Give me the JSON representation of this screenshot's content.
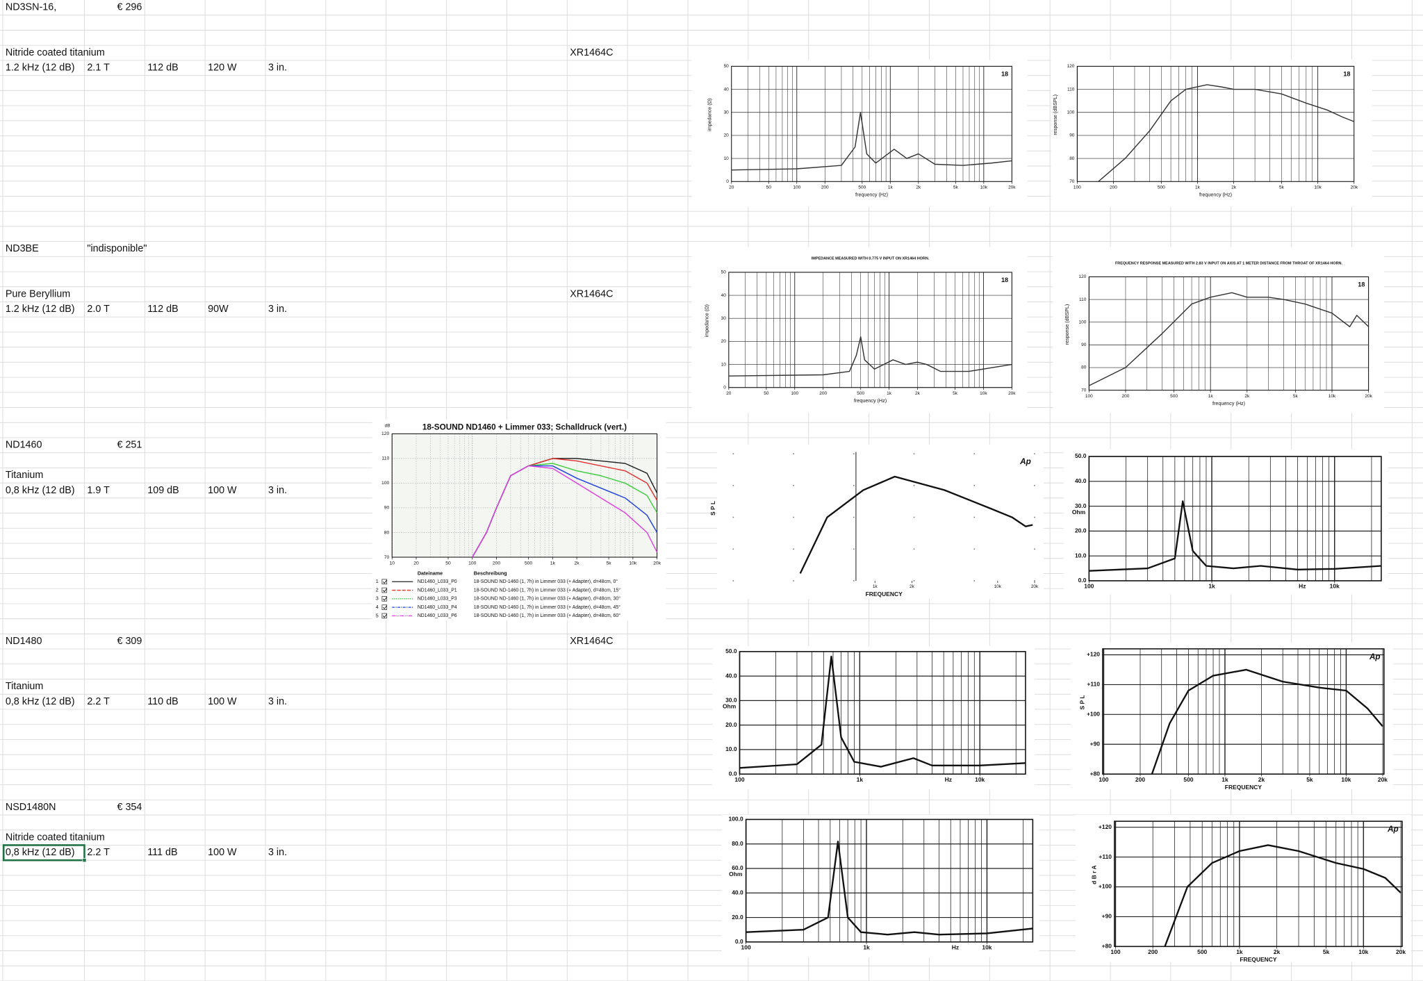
{
  "sheet": [
    {
      "model": "ND3SN-16,",
      "price": "€ 296",
      "material": "Nitride coated titanium",
      "horn": "XR1464C",
      "specs": [
        "1.2 kHz (12 dB)",
        "2.1 T",
        "112 dB",
        "120 W",
        "3 in."
      ]
    },
    {
      "model": "ND3BE",
      "price": "\"indisponible\"",
      "material": "Pure Beryllium",
      "horn": "XR1464C",
      "specs": [
        "1.2 kHz (12 dB)",
        "2.0 T",
        "112 dB",
        "90W",
        "3 in."
      ]
    },
    {
      "model": "ND1460",
      "price": "€ 251",
      "material": "Titanium",
      "specs": [
        "0,8 kHz (12 dB)",
        "1.9 T",
        "109 dB",
        "100 W",
        "3 in."
      ]
    },
    {
      "model": "ND1480",
      "price": "€ 309",
      "material": "Titanium",
      "horn": "XR1464C",
      "specs": [
        "0,8 kHz (12 dB)",
        "2.2 T",
        "110 dB",
        "100 W",
        "3 in."
      ]
    },
    {
      "model": "NSD1480N",
      "price": "€ 354",
      "material": "Nitride coated titanium",
      "specs": [
        "0,8 kHz (12 dB)",
        "2.2 T",
        "111 dB",
        "100 W",
        "3 in."
      ]
    }
  ],
  "images": [
    {
      "logo": "18",
      "ylabel": "impedance (Ω)",
      "xlabel": "frequency (Hz)",
      "xlim": [
        20,
        20000
      ],
      "ylim": [
        0,
        50
      ],
      "xticks": [
        20,
        50,
        100,
        200,
        500,
        {
          "value": 1000,
          "label": "1k"
        },
        {
          "value": 2000,
          "label": "2k"
        },
        {
          "value": 5000,
          "label": "5k"
        },
        {
          "value": 10000,
          "label": "10k"
        },
        {
          "value": 20000,
          "label": "20k"
        }
      ],
      "yticks": [
        0,
        10,
        20,
        30,
        40,
        50
      ],
      "series": [
        {
          "color": "#333333",
          "x": [
            20,
            100,
            300,
            420,
            480,
            560,
            700,
            1100,
            1500,
            2000,
            3000,
            6000,
            12000,
            20000
          ],
          "values": [
            5,
            5.5,
            7,
            15,
            30,
            12,
            8,
            14,
            10,
            12,
            7.5,
            7,
            8,
            9
          ]
        }
      ]
    },
    {
      "logo": "18",
      "ylabel": "response (dBSPL)",
      "xlabel": "frequency (Hz)",
      "xlim": [
        100,
        20000
      ],
      "ylim": [
        70,
        120
      ],
      "xticks": [
        100,
        200,
        500,
        {
          "value": 1000,
          "label": "1k"
        },
        {
          "value": 2000,
          "label": "2k"
        },
        {
          "value": 5000,
          "label": "5k"
        },
        {
          "value": 10000,
          "label": "10k"
        },
        {
          "value": 20000,
          "label": "20k"
        }
      ],
      "yticks": [
        70,
        80,
        90,
        100,
        110,
        120
      ],
      "series": [
        {
          "color": "#333333",
          "x": [
            150,
            250,
            400,
            600,
            800,
            1200,
            1600,
            2000,
            3000,
            5000,
            8000,
            12000,
            16000,
            20000
          ],
          "values": [
            70,
            80,
            92,
            105,
            110,
            112,
            111,
            110,
            110,
            108,
            104,
            101,
            98,
            96
          ]
        }
      ]
    },
    {
      "title": "IMPEDANCE MEASURED WITH 0.775 V INPUT ON XR1464 HORN.",
      "logo": "18",
      "ylabel": "impedance (Ω)",
      "xlabel": "frequency (Hz)",
      "xlim": [
        20,
        20000
      ],
      "ylim": [
        0,
        50
      ],
      "xticks": [
        20,
        50,
        100,
        200,
        500,
        {
          "value": 1000,
          "label": "1k"
        },
        {
          "value": 2000,
          "label": "2k"
        },
        {
          "value": 5000,
          "label": "5k"
        },
        {
          "value": 10000,
          "label": "10k"
        },
        {
          "value": 20000,
          "label": "20k"
        }
      ],
      "yticks": [
        0,
        10,
        20,
        30,
        40,
        50
      ],
      "series": [
        {
          "color": "#333333",
          "x": [
            20,
            200,
            380,
            450,
            500,
            550,
            700,
            1100,
            1500,
            2000,
            2500,
            3500,
            7000,
            20000
          ],
          "values": [
            5,
            5.5,
            7,
            14,
            22,
            12,
            8,
            12,
            10,
            11,
            10,
            7,
            7,
            10
          ]
        }
      ]
    },
    {
      "title": "FREQUENCY RESPONSE MEASURED WITH 2.83 V INPUT ON AXIS AT 1 METER DISTANCE FROM THROAT OF XR1464 HORN.",
      "logo": "18",
      "ylabel": "response (dBSPL)",
      "xlabel": "frequency (Hz)",
      "xlim": [
        100,
        20000
      ],
      "ylim": [
        70,
        120
      ],
      "xticks": [
        100,
        200,
        500,
        {
          "value": 1000,
          "label": "1k"
        },
        {
          "value": 2000,
          "label": "2k"
        },
        {
          "value": 5000,
          "label": "5k"
        },
        {
          "value": 10000,
          "label": "10k"
        },
        {
          "value": 20000,
          "label": "20k"
        }
      ],
      "yticks": [
        70,
        80,
        90,
        100,
        110,
        120
      ],
      "series": [
        {
          "color": "#333333",
          "x": [
            100,
            200,
            400,
            700,
            1000,
            1500,
            2000,
            3000,
            4000,
            6000,
            10000,
            14000,
            16000,
            20000
          ],
          "values": [
            72,
            80,
            95,
            108,
            111,
            113,
            111,
            111,
            110,
            108,
            104,
            98,
            103,
            98
          ]
        }
      ]
    },
    {
      "title": "18-SOUND ND1460 + Limmer 033; Schalldruck (vert.)",
      "ylabel": "dB",
      "xlim": [
        10,
        20000
      ],
      "ylim": [
        70,
        120
      ],
      "xticks": [
        10,
        20,
        50,
        100,
        200,
        500,
        {
          "value": 1000,
          "label": "1k"
        },
        {
          "value": 2000,
          "label": "2k"
        },
        {
          "value": 5000,
          "label": "5k"
        },
        {
          "value": 10000,
          "label": "10k"
        },
        {
          "value": 20000,
          "label": "20k"
        }
      ],
      "yticks": [
        70,
        80,
        90,
        100,
        110,
        120
      ],
      "series": [
        {
          "color": "#222222",
          "x": [
            100,
            150,
            200,
            300,
            500,
            1000,
            2000,
            4000,
            8000,
            15000,
            20000
          ],
          "values": [
            70,
            80,
            90,
            103,
            107,
            110,
            110,
            109,
            108,
            104,
            96
          ]
        },
        {
          "color": "#e03030",
          "x": [
            100,
            150,
            200,
            300,
            500,
            1000,
            2000,
            4000,
            8000,
            15000,
            20000
          ],
          "values": [
            70,
            80,
            90,
            103,
            107,
            110,
            109,
            107,
            105,
            100,
            93
          ]
        },
        {
          "color": "#40cc40",
          "x": [
            100,
            150,
            200,
            300,
            500,
            1000,
            2000,
            4000,
            8000,
            15000,
            20000
          ],
          "values": [
            70,
            80,
            90,
            103,
            107,
            108,
            105,
            103,
            100,
            95,
            88
          ]
        },
        {
          "color": "#2040e0",
          "x": [
            100,
            150,
            200,
            300,
            500,
            1000,
            2000,
            4000,
            8000,
            15000,
            20000
          ],
          "values": [
            70,
            80,
            90,
            103,
            107,
            107,
            102,
            98,
            94,
            87,
            80
          ]
        },
        {
          "color": "#e040e0",
          "x": [
            100,
            150,
            200,
            300,
            500,
            1000,
            2000,
            4000,
            8000,
            15000,
            20000
          ],
          "values": [
            70,
            80,
            90,
            103,
            107,
            106,
            100,
            94,
            88,
            80,
            72
          ]
        }
      ],
      "legend": {
        "header": [
          "Dateiname",
          "Beschreibung"
        ],
        "rows": [
          [
            "1",
            "ND1460_L033_P0",
            "18-SOUND ND-1460 (1, 7h) in Limmer 033 (+ Adapter), d=48cm, 0°"
          ],
          [
            "2",
            "ND1460_L033_P1",
            "18-SOUND ND-1460 (1, 7h) in Limmer 033 (+ Adapter), d=48cm, 15°"
          ],
          [
            "3",
            "ND1460_L033_P3",
            "18-SOUND ND-1460 (1, 7h) in Limmer 033 (+ Adapter), d=48cm, 30°"
          ],
          [
            "4",
            "ND1460_L033_P4",
            "18-SOUND ND-1460 (1, 7h) in Limmer 033 (+ Adapter), d=48cm, 45°"
          ],
          [
            "5",
            "ND1460_L033_P6",
            "18-SOUND ND-1460 (1, 7h) in Limmer 033 (+ Adapter), d=48cm, 60°"
          ]
        ]
      }
    },
    {
      "logo": "Ap",
      "ylabel": "S P L",
      "xlabel": "FREQUENCY",
      "xlim": [
        70,
        20000
      ],
      "ylim": [
        70,
        120
      ],
      "xticks": [
        {
          "value": 1000,
          "label": "1k"
        },
        {
          "value": 2000,
          "label": "2k"
        },
        {
          "value": 10000,
          "label": "10k"
        },
        {
          "value": 20000,
          "label": "20k"
        }
      ],
      "yticks": [],
      "series": [
        {
          "color": "#111111",
          "x": [
            246,
            408,
            803,
            1450,
            3680,
            8600,
            13100,
            16900,
            19300
          ],
          "values": [
            72.9,
            95,
            105.7,
            111,
            105.7,
            98.6,
            95,
            91.4,
            92
          ]
        }
      ]
    },
    {
      "ylabel": "Ohm",
      "xunit": "Hz",
      "xlim": [
        100,
        24000
      ],
      "ylim": [
        0,
        50
      ],
      "xticks": [
        100,
        {
          "value": 1000,
          "label": "1k"
        },
        {
          "value": 10000,
          "label": "10k"
        }
      ],
      "yticks": [
        {
          "value": 0,
          "label": "0.0"
        },
        {
          "value": 10,
          "label": "10.0"
        },
        {
          "value": 20,
          "label": "20.0"
        },
        {
          "value": 30,
          "label": "30.0"
        },
        {
          "value": 40,
          "label": "40.0"
        },
        {
          "value": 50,
          "label": "50.0"
        }
      ],
      "series": [
        {
          "color": "#111111",
          "x": [
            100,
            300,
            500,
            580,
            700,
            900,
            1500,
            2500,
            5000,
            10000,
            24000
          ],
          "values": [
            4,
            5,
            9,
            32,
            12,
            6,
            5,
            6,
            4.5,
            4.8,
            6
          ]
        }
      ]
    },
    {
      "ylabel": "Ohm",
      "xunit": "Hz",
      "xlim": [
        100,
        24000
      ],
      "ylim": [
        0,
        50
      ],
      "xticks": [
        100,
        {
          "value": 1000,
          "label": "1k"
        },
        {
          "value": 10000,
          "label": "10k"
        }
      ],
      "yticks": [
        {
          "value": 0,
          "label": "0.0"
        },
        {
          "value": 10,
          "label": "10.0"
        },
        {
          "value": 20,
          "label": "20.0"
        },
        {
          "value": 30,
          "label": "30.0"
        },
        {
          "value": 40,
          "label": "40.0"
        },
        {
          "value": 50,
          "label": "50.0"
        }
      ],
      "series": [
        {
          "color": "#111111",
          "x": [
            100,
            300,
            480,
            580,
            700,
            900,
            1500,
            2800,
            4000,
            10000,
            24000
          ],
          "values": [
            2.5,
            4,
            12,
            48,
            15,
            5,
            3,
            6.5,
            3.5,
            3.5,
            4.5
          ]
        }
      ]
    },
    {
      "logo": "Ap",
      "ylabel": "S P L",
      "xlabel": "FREQUENCY",
      "xlim": [
        98,
        20500
      ],
      "ylim": [
        80,
        122
      ],
      "xticks": [
        100,
        200,
        500,
        {
          "value": 1000,
          "label": "1k"
        },
        {
          "value": 2000,
          "label": "2k"
        },
        {
          "value": 5000,
          "label": "5k"
        },
        {
          "value": 10000,
          "label": "10k"
        },
        {
          "value": 20000,
          "label": "20k"
        }
      ],
      "yticks": [
        {
          "value": 80,
          "label": "+80"
        },
        {
          "value": 90,
          "label": "+90"
        },
        {
          "value": 100,
          "label": "+100"
        },
        {
          "value": 110,
          "label": "+110"
        },
        {
          "value": 120,
          "label": "+120"
        }
      ],
      "series": [
        {
          "color": "#111111",
          "x": [
            250,
            350,
            500,
            800,
            1500,
            3000,
            6000,
            10000,
            15000,
            20000
          ],
          "values": [
            80,
            97,
            108,
            113,
            115,
            111,
            109,
            108,
            102,
            96
          ]
        }
      ]
    },
    {
      "ylabel": "Ohm",
      "xunit": "Hz",
      "xlim": [
        100,
        24000
      ],
      "ylim": [
        0,
        100
      ],
      "xticks": [
        100,
        {
          "value": 1000,
          "label": "1k"
        },
        {
          "value": 10000,
          "label": "10k"
        }
      ],
      "yticks": [
        {
          "value": 0,
          "label": "0.0"
        },
        {
          "value": 20,
          "label": "20.0"
        },
        {
          "value": 40,
          "label": "40.0"
        },
        {
          "value": 60,
          "label": "60.0"
        },
        {
          "value": 80,
          "label": "80.0"
        },
        {
          "value": 100,
          "label": "100.0"
        }
      ],
      "series": [
        {
          "color": "#111111",
          "x": [
            100,
            300,
            480,
            580,
            700,
            900,
            1500,
            2500,
            4000,
            10000,
            24000
          ],
          "values": [
            8,
            10,
            20,
            82,
            20,
            8,
            6,
            8,
            6,
            7,
            11
          ]
        }
      ]
    },
    {
      "logo": "Ap",
      "ylabel": "d B r A",
      "xlabel": "FREQUENCY",
      "xlim": [
        98,
        20500
      ],
      "ylim": [
        80,
        122
      ],
      "xticks": [
        100,
        200,
        500,
        {
          "value": 1000,
          "label": "1k"
        },
        {
          "value": 2000,
          "label": "2k"
        },
        {
          "value": 5000,
          "label": "5k"
        },
        {
          "value": 10000,
          "label": "10k"
        },
        {
          "value": 20000,
          "label": "20k"
        }
      ],
      "yticks": [
        {
          "value": 80,
          "label": "+80"
        },
        {
          "value": 90,
          "label": "+90"
        },
        {
          "value": 100,
          "label": "+100"
        },
        {
          "value": 110,
          "label": "+110"
        },
        {
          "value": 120,
          "label": "+120"
        }
      ],
      "series": [
        {
          "color": "#111111",
          "x": [
            250,
            380,
            600,
            1000,
            1700,
            3000,
            6000,
            10000,
            15000,
            20000
          ],
          "values": [
            80,
            100,
            108,
            112,
            114,
            112,
            108,
            106,
            103,
            98
          ]
        }
      ]
    }
  ]
}
